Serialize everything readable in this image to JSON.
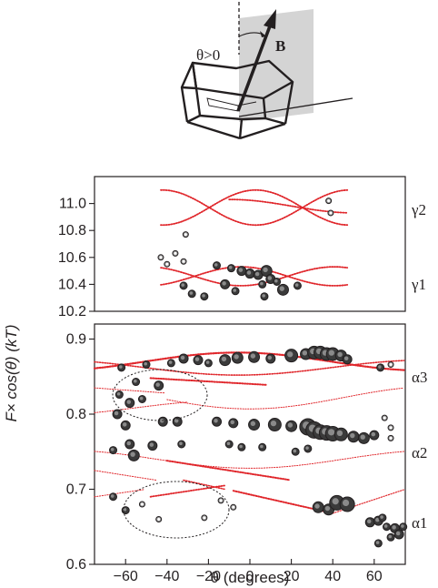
{
  "diagram": {
    "angle_label": "θ>0",
    "field_label": "B"
  },
  "chart_data": [
    {
      "type": "scatter",
      "panel": "upper",
      "xlabel": "θ (degrees)",
      "ylabel": "F× cos(θ) (kT)",
      "xlim": [
        -75,
        75
      ],
      "ylim": [
        10.2,
        11.2
      ],
      "yticks": [
        "10.2",
        "10.4",
        "10.6",
        "10.8",
        "11.0"
      ],
      "series": [
        {
          "name": "γ2",
          "curves": [
            {
              "a": 10.97,
              "b": 0.13,
              "k": 4,
              "phase": -0.2,
              "range": [
                -43,
                47
              ]
            },
            {
              "a": 10.97,
              "b": -0.13,
              "k": 4,
              "phase": -0.2,
              "range": [
                -43,
                47
              ]
            },
            {
              "a": 10.98,
              "b": 0.05,
              "k": 3,
              "phase": 0.5,
              "range": [
                -10,
                47
              ]
            }
          ]
        },
        {
          "name": "γ1",
          "curves": [
            {
              "a": 10.46,
              "b": 0.07,
              "k": 4,
              "phase": 0.3,
              "range": [
                -43,
                47
              ]
            },
            {
              "a": 10.46,
              "b": -0.07,
              "k": 4,
              "phase": 0.3,
              "range": [
                -43,
                47
              ]
            }
          ]
        }
      ],
      "points": [
        {
          "x": 38,
          "y": 11.02,
          "s": 3
        },
        {
          "x": 39,
          "y": 10.93,
          "s": 3
        },
        {
          "x": -31,
          "y": 10.77,
          "s": 3
        },
        {
          "x": -43,
          "y": 10.6,
          "s": 3
        },
        {
          "x": -36,
          "y": 10.63,
          "s": 3
        },
        {
          "x": -32,
          "y": 10.57,
          "s": 3
        },
        {
          "x": -40,
          "y": 10.55,
          "s": 3
        },
        {
          "x": -16,
          "y": 10.54,
          "s": 4
        },
        {
          "x": -9,
          "y": 10.52,
          "s": 4
        },
        {
          "x": -4,
          "y": 10.5,
          "s": 5
        },
        {
          "x": 0,
          "y": 10.48,
          "s": 5
        },
        {
          "x": 4,
          "y": 10.47,
          "s": 5
        },
        {
          "x": 8,
          "y": 10.5,
          "s": 6
        },
        {
          "x": 10,
          "y": 10.44,
          "s": 5
        },
        {
          "x": 13,
          "y": 10.42,
          "s": 4
        },
        {
          "x": 6,
          "y": 10.4,
          "s": 4
        },
        {
          "x": -12,
          "y": 10.4,
          "s": 5
        },
        {
          "x": 16,
          "y": 10.36,
          "s": 6
        },
        {
          "x": -32,
          "y": 10.39,
          "s": 4
        },
        {
          "x": -7,
          "y": 10.35,
          "s": 4
        },
        {
          "x": -28,
          "y": 10.33,
          "s": 4
        },
        {
          "x": -22,
          "y": 10.31,
          "s": 4
        },
        {
          "x": 7,
          "y": 10.31,
          "s": 4
        },
        {
          "x": 23,
          "y": 10.39,
          "s": 4
        }
      ],
      "series_labels": [
        "γ2",
        "γ1"
      ]
    },
    {
      "type": "scatter",
      "panel": "lower",
      "xlabel": "θ (degrees)",
      "ylabel": "F× cos(θ) (kT)",
      "xlim": [
        -75,
        75
      ],
      "ylim": [
        0.6,
        0.92
      ],
      "yticks": [
        "0.6",
        "0.7",
        "0.8",
        "0.9"
      ],
      "xticks": [
        "−60",
        "−40",
        "−20",
        "0",
        "20",
        "40",
        "60"
      ],
      "series_labels": [
        "α3",
        "α2",
        "α1"
      ],
      "curves": [
        {
          "type": "sin",
          "a": 0.87,
          "b": 0.012,
          "k": 2,
          "phase": 0.2,
          "range": [
            -75,
            75
          ],
          "w": 2.2
        },
        {
          "type": "sin",
          "a": 0.862,
          "b": -0.01,
          "k": 2,
          "phase": 0.2,
          "range": [
            -75,
            75
          ],
          "w": 1.6
        },
        {
          "type": "line",
          "from": [
            -48,
            0.848
          ],
          "to": [
            8,
            0.839
          ],
          "w": 2.0
        },
        {
          "type": "line",
          "from": [
            -75,
            0.835
          ],
          "to": [
            -40,
            0.828
          ],
          "w": 1.0
        },
        {
          "type": "sin",
          "a": 0.822,
          "b": -0.015,
          "k": 2,
          "phase": 0.0,
          "range": [
            -40,
            75
          ],
          "w": 1.0
        },
        {
          "type": "sin",
          "a": 0.808,
          "b": 0.01,
          "k": 2,
          "phase": 0.4,
          "range": [
            -75,
            -30
          ],
          "w": 1.0
        },
        {
          "type": "sin",
          "a": 0.74,
          "b": -0.012,
          "k": 2,
          "phase": 0.0,
          "range": [
            -75,
            75
          ],
          "w": 1.0
        },
        {
          "type": "line",
          "from": [
            -40,
            0.738
          ],
          "to": [
            20,
            0.712
          ],
          "w": 2.0
        },
        {
          "type": "line",
          "from": [
            -75,
            0.725
          ],
          "to": [
            -45,
            0.712
          ],
          "w": 1.0
        },
        {
          "type": "line",
          "from": [
            -48,
            0.69
          ],
          "to": [
            -12,
            0.705
          ],
          "w": 1.8
        },
        {
          "type": "line",
          "from": [
            -32,
            0.712
          ],
          "to": [
            -12,
            0.7
          ],
          "w": 1.6
        },
        {
          "type": "line",
          "from": [
            -75,
            0.69
          ],
          "to": [
            -50,
            0.7
          ],
          "w": 1.0
        },
        {
          "type": "line",
          "from": [
            -8,
            0.698
          ],
          "to": [
            40,
            0.668
          ],
          "w": 2.0
        },
        {
          "type": "line",
          "from": [
            40,
            0.668
          ],
          "to": [
            75,
            0.7
          ],
          "w": 1.2
        }
      ],
      "points": [
        {
          "x": -62,
          "y": 0.862,
          "s": 4
        },
        {
          "x": -50,
          "y": 0.866,
          "s": 4
        },
        {
          "x": -38,
          "y": 0.868,
          "s": 4
        },
        {
          "x": -32,
          "y": 0.874,
          "s": 5
        },
        {
          "x": -25,
          "y": 0.872,
          "s": 5
        },
        {
          "x": -20,
          "y": 0.868,
          "s": 4
        },
        {
          "x": -12,
          "y": 0.872,
          "s": 6
        },
        {
          "x": -6,
          "y": 0.875,
          "s": 6
        },
        {
          "x": 2,
          "y": 0.876,
          "s": 6
        },
        {
          "x": 10,
          "y": 0.874,
          "s": 5
        },
        {
          "x": 20,
          "y": 0.878,
          "s": 7
        },
        {
          "x": 27,
          "y": 0.88,
          "s": 6
        },
        {
          "x": 31,
          "y": 0.882,
          "s": 7
        },
        {
          "x": 34,
          "y": 0.882,
          "s": 7
        },
        {
          "x": 37,
          "y": 0.88,
          "s": 7
        },
        {
          "x": 40,
          "y": 0.88,
          "s": 7
        },
        {
          "x": 44,
          "y": 0.878,
          "s": 6
        },
        {
          "x": 47,
          "y": 0.873,
          "s": 5
        },
        {
          "x": 63,
          "y": 0.862,
          "s": 4
        },
        {
          "x": 68,
          "y": 0.866,
          "s": 3
        },
        {
          "x": -55,
          "y": 0.843,
          "s": 4
        },
        {
          "x": -44,
          "y": 0.838,
          "s": 5
        },
        {
          "x": -63,
          "y": 0.826,
          "s": 4
        },
        {
          "x": -52,
          "y": 0.82,
          "s": 4
        },
        {
          "x": -58,
          "y": 0.815,
          "s": 5
        },
        {
          "x": -64,
          "y": 0.8,
          "s": 5
        },
        {
          "x": -60,
          "y": 0.785,
          "s": 5
        },
        {
          "x": -42,
          "y": 0.79,
          "s": 5
        },
        {
          "x": -35,
          "y": 0.79,
          "s": 5
        },
        {
          "x": -16,
          "y": 0.79,
          "s": 5
        },
        {
          "x": -8,
          "y": 0.788,
          "s": 5
        },
        {
          "x": 2,
          "y": 0.786,
          "s": 6
        },
        {
          "x": 12,
          "y": 0.786,
          "s": 7
        },
        {
          "x": 20,
          "y": 0.784,
          "s": 6
        },
        {
          "x": 28,
          "y": 0.783,
          "s": 9
        },
        {
          "x": 31,
          "y": 0.779,
          "s": 9
        },
        {
          "x": 34,
          "y": 0.776,
          "s": 8
        },
        {
          "x": 37,
          "y": 0.775,
          "s": 8
        },
        {
          "x": 40,
          "y": 0.774,
          "s": 8
        },
        {
          "x": 44,
          "y": 0.773,
          "s": 7
        },
        {
          "x": 50,
          "y": 0.77,
          "s": 6
        },
        {
          "x": 55,
          "y": 0.768,
          "s": 6
        },
        {
          "x": 60,
          "y": 0.772,
          "s": 5
        },
        {
          "x": 68,
          "y": 0.782,
          "s": 3
        },
        {
          "x": 68,
          "y": 0.768,
          "s": 3
        },
        {
          "x": 65,
          "y": 0.795,
          "s": 3
        },
        {
          "x": -66,
          "y": 0.752,
          "s": 4
        },
        {
          "x": -58,
          "y": 0.76,
          "s": 5
        },
        {
          "x": -56,
          "y": 0.745,
          "s": 6
        },
        {
          "x": -47,
          "y": 0.758,
          "s": 5
        },
        {
          "x": -33,
          "y": 0.76,
          "s": 4
        },
        {
          "x": -10,
          "y": 0.76,
          "s": 4
        },
        {
          "x": -4,
          "y": 0.756,
          "s": 4
        },
        {
          "x": 6,
          "y": 0.756,
          "s": 4
        },
        {
          "x": 22,
          "y": 0.75,
          "s": 4
        },
        {
          "x": 28,
          "y": 0.754,
          "s": 4
        },
        {
          "x": -66,
          "y": 0.69,
          "s": 4
        },
        {
          "x": -60,
          "y": 0.672,
          "s": 4
        },
        {
          "x": -52,
          "y": 0.68,
          "s": 3
        },
        {
          "x": -44,
          "y": 0.66,
          "s": 3
        },
        {
          "x": -14,
          "y": 0.685,
          "s": 3
        },
        {
          "x": -22,
          "y": 0.662,
          "s": 3
        },
        {
          "x": -8,
          "y": 0.676,
          "s": 3
        },
        {
          "x": 33,
          "y": 0.676,
          "s": 6
        },
        {
          "x": 38,
          "y": 0.673,
          "s": 6
        },
        {
          "x": 42,
          "y": 0.682,
          "s": 8
        },
        {
          "x": 47,
          "y": 0.68,
          "s": 8
        },
        {
          "x": 58,
          "y": 0.656,
          "s": 5
        },
        {
          "x": 62,
          "y": 0.658,
          "s": 5
        },
        {
          "x": 64,
          "y": 0.662,
          "s": 4
        },
        {
          "x": 66,
          "y": 0.65,
          "s": 4
        },
        {
          "x": 70,
          "y": 0.648,
          "s": 5
        },
        {
          "x": 72,
          "y": 0.64,
          "s": 5
        },
        {
          "x": 68,
          "y": 0.636,
          "s": 4
        },
        {
          "x": 74,
          "y": 0.65,
          "s": 4
        },
        {
          "x": 62,
          "y": 0.628,
          "s": 4
        }
      ]
    }
  ]
}
